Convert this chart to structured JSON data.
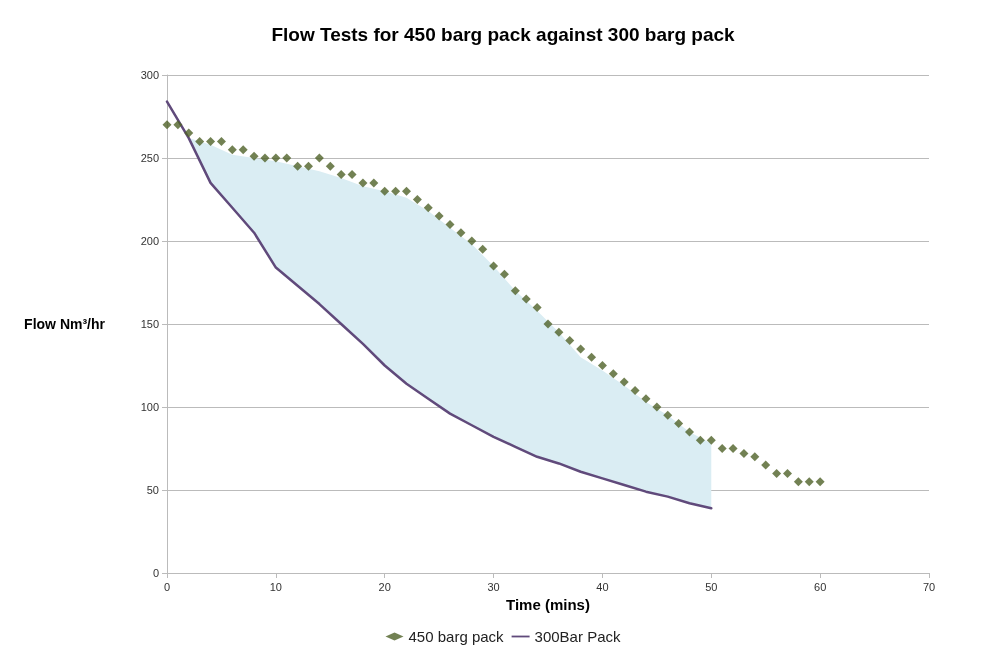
{
  "chart_data": {
    "type": "scatter",
    "title": "Flow Tests for 450 barg pack against 300 barg pack",
    "xlabel": "Time (mins)",
    "ylabel": "Flow Nm³/hr",
    "xlim": [
      0,
      70
    ],
    "xticks": [
      0,
      10,
      20,
      30,
      40,
      50,
      60,
      70
    ],
    "ylim": [
      0,
      300
    ],
    "yticks": [
      0,
      50,
      100,
      150,
      200,
      250,
      300
    ],
    "grid": "y",
    "legend": "bottom",
    "series": [
      {
        "name": "450 barg pack",
        "marker": "diamond",
        "color": "#4f6228",
        "x": [
          0,
          1,
          2,
          3,
          4,
          5,
          6,
          7,
          8,
          9,
          10,
          11,
          12,
          13,
          14,
          15,
          16,
          17,
          18,
          19,
          20,
          21,
          22,
          23,
          24,
          25,
          26,
          27,
          28,
          29,
          30,
          31,
          32,
          33,
          34,
          35,
          36,
          37,
          38,
          39,
          40,
          41,
          42,
          43,
          44,
          45,
          46,
          47,
          48,
          49,
          50,
          51,
          52,
          53,
          54,
          55,
          56,
          57,
          58,
          59,
          60
        ],
        "values": [
          270,
          270,
          265,
          260,
          260,
          260,
          255,
          255,
          251,
          250,
          250,
          250,
          245,
          245,
          250,
          245,
          240,
          240,
          235,
          235,
          230,
          230,
          230,
          225,
          220,
          215,
          210,
          205,
          200,
          195,
          185,
          180,
          170,
          165,
          160,
          150,
          145,
          140,
          135,
          130,
          125,
          120,
          115,
          110,
          105,
          100,
          95,
          90,
          85,
          80,
          80,
          75,
          75,
          72,
          70,
          65,
          60,
          60,
          55,
          55,
          55
        ]
      },
      {
        "name": "300Bar Pack",
        "type": "line",
        "marker": "none",
        "line_style": "solid",
        "color": "#604a7b",
        "x": [
          0,
          2,
          4,
          6,
          8,
          10,
          12,
          14,
          16,
          18,
          20,
          22,
          24,
          26,
          28,
          30,
          32,
          34,
          36,
          38,
          40,
          42,
          44,
          46,
          48,
          50
        ],
        "values": [
          284,
          262,
          235,
          220,
          205,
          184,
          173,
          162,
          150,
          138,
          125,
          114,
          105,
          96,
          89,
          82,
          76,
          70,
          66,
          61,
          57,
          53,
          49,
          46,
          42,
          39
        ],
        "lower": [
          null,
          262,
          235,
          220,
          205,
          184,
          173,
          162,
          150,
          138,
          125,
          114,
          105,
          96,
          89,
          82,
          76,
          70,
          66,
          61,
          57,
          53,
          49,
          46,
          42,
          39
        ],
        "upper": [
          null,
          262,
          258,
          252,
          250,
          248,
          245,
          242,
          238,
          233,
          230,
          226,
          218,
          208,
          198,
          185,
          170,
          158,
          145,
          130,
          122,
          113,
          103,
          95,
          85,
          78
        ]
      }
    ]
  }
}
